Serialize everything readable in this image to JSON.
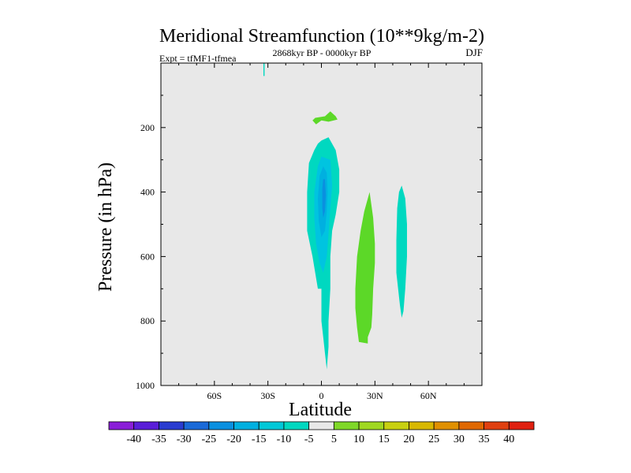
{
  "chart_data": {
    "type": "heatmap",
    "title": "Meridional Streamfunction (10**9kg/m-2)",
    "left_annotation": "Expt = tfMF1-tfmea",
    "center_annotation": "2868kyr BP - 0000kyr BP",
    "right_annotation": "DJF",
    "xlabel": "Latitude",
    "ylabel": "Pressure (in hPa)",
    "xlim": [
      -90,
      90
    ],
    "ylim": [
      1000,
      0
    ],
    "x_ticks": [
      {
        "value": -60,
        "label": "60S"
      },
      {
        "value": -30,
        "label": "30S"
      },
      {
        "value": 0,
        "label": "0"
      },
      {
        "value": 30,
        "label": "30N"
      },
      {
        "value": 60,
        "label": "60N"
      }
    ],
    "y_ticks": [
      {
        "value": 200,
        "label": "200"
      },
      {
        "value": 400,
        "label": "400"
      },
      {
        "value": 600,
        "label": "600"
      },
      {
        "value": 800,
        "label": "800"
      },
      {
        "value": 1000,
        "label": "1000"
      }
    ],
    "background_color": "#e8e8e8",
    "colorbar": {
      "levels": [
        -40,
        -35,
        -30,
        -25,
        -20,
        -15,
        -10,
        -5,
        5,
        10,
        15,
        20,
        25,
        30,
        35,
        40
      ],
      "level_labels": [
        "-40",
        "-35",
        "-30",
        "-25",
        "-20",
        "-15",
        "-10",
        "-5",
        "5",
        "10",
        "15",
        "20",
        "25",
        "30",
        "35",
        "40"
      ],
      "colors": [
        "#8a1ed8",
        "#5a1ed8",
        "#2a3cd0",
        "#1a6ad8",
        "#0a90e0",
        "#00b0e0",
        "#00c8d8",
        "#00d8c0",
        "#e8e8e8",
        "#7fd828",
        "#a0d820",
        "#c8d010",
        "#d8b800",
        "#e09000",
        "#e06800",
        "#e04010",
        "#e02010"
      ]
    },
    "regions": [
      {
        "name": "northern-spike",
        "value": -7,
        "color": "#00d8c0",
        "points": [
          [
            -32.5,
            0
          ],
          [
            -31.9,
            0
          ],
          [
            -31.9,
            40
          ],
          [
            -32.5,
            40
          ]
        ]
      },
      {
        "name": "upper-positive-cell",
        "value": 7,
        "color": "#5cd828",
        "points": [
          [
            -3.5,
            170
          ],
          [
            2,
            165
          ],
          [
            5,
            150
          ],
          [
            8,
            165
          ],
          [
            9,
            175
          ],
          [
            4,
            182
          ],
          [
            0,
            178
          ],
          [
            -3,
            190
          ],
          [
            -5,
            178
          ]
        ]
      },
      {
        "name": "equatorial-negative-outer",
        "value": -7,
        "color": "#00d8c0",
        "points": [
          [
            4,
            230
          ],
          [
            8,
            270
          ],
          [
            10,
            330
          ],
          [
            10,
            400
          ],
          [
            8,
            470
          ],
          [
            6,
            520
          ],
          [
            5,
            600
          ],
          [
            5,
            700
          ],
          [
            4,
            800
          ],
          [
            4,
            880
          ],
          [
            3,
            950
          ],
          [
            2,
            900
          ],
          [
            1,
            850
          ],
          [
            0,
            800
          ],
          [
            0,
            700
          ],
          [
            -2,
            700
          ],
          [
            -5,
            600
          ],
          [
            -8,
            520
          ],
          [
            -8,
            400
          ],
          [
            -7,
            310
          ],
          [
            -4,
            270
          ],
          [
            -2,
            250
          ],
          [
            0,
            240
          ]
        ]
      },
      {
        "name": "equatorial-negative-mid",
        "value": -12,
        "color": "#00c4e0",
        "points": [
          [
            5,
            300
          ],
          [
            6,
            380
          ],
          [
            5,
            450
          ],
          [
            4,
            530
          ],
          [
            3,
            600
          ],
          [
            1,
            650
          ],
          [
            -1,
            620
          ],
          [
            -3,
            560
          ],
          [
            -4,
            480
          ],
          [
            -4,
            400
          ],
          [
            -2,
            320
          ],
          [
            0,
            290
          ]
        ]
      },
      {
        "name": "equatorial-negative-core",
        "value": -17,
        "color": "#00b0e0",
        "points": [
          [
            3,
            340
          ],
          [
            3.5,
            400
          ],
          [
            3,
            460
          ],
          [
            2,
            520
          ],
          [
            0,
            540
          ],
          [
            -1.5,
            490
          ],
          [
            -2,
            420
          ],
          [
            -1,
            350
          ],
          [
            1,
            320
          ]
        ]
      },
      {
        "name": "equatorial-negative-peak",
        "value": -22,
        "color": "#0a90e0",
        "points": [
          [
            2,
            360
          ],
          [
            2.5,
            410
          ],
          [
            2,
            460
          ],
          [
            1,
            480
          ],
          [
            0.5,
            450
          ],
          [
            0.5,
            390
          ],
          [
            1,
            360
          ]
        ]
      },
      {
        "name": "subtropical-positive-cell",
        "value": 7,
        "color": "#5cd828",
        "points": [
          [
            27,
            400
          ],
          [
            29,
            480
          ],
          [
            30,
            560
          ],
          [
            30,
            620
          ],
          [
            29,
            700
          ],
          [
            28.5,
            780
          ],
          [
            28,
            820
          ],
          [
            26,
            850
          ],
          [
            26,
            870
          ],
          [
            21,
            865
          ],
          [
            20,
            820
          ],
          [
            19,
            760
          ],
          [
            19,
            700
          ],
          [
            20,
            600
          ],
          [
            22,
            520
          ],
          [
            24,
            460
          ]
        ]
      },
      {
        "name": "midlatitude-negative-cell",
        "value": -7,
        "color": "#00d8c0",
        "points": [
          [
            45,
            380
          ],
          [
            47,
            420
          ],
          [
            48,
            500
          ],
          [
            48,
            600
          ],
          [
            47,
            700
          ],
          [
            46,
            770
          ],
          [
            45,
            790
          ],
          [
            44,
            750
          ],
          [
            42,
            650
          ],
          [
            42,
            550
          ],
          [
            42.5,
            450
          ],
          [
            43.5,
            400
          ]
        ]
      }
    ]
  }
}
